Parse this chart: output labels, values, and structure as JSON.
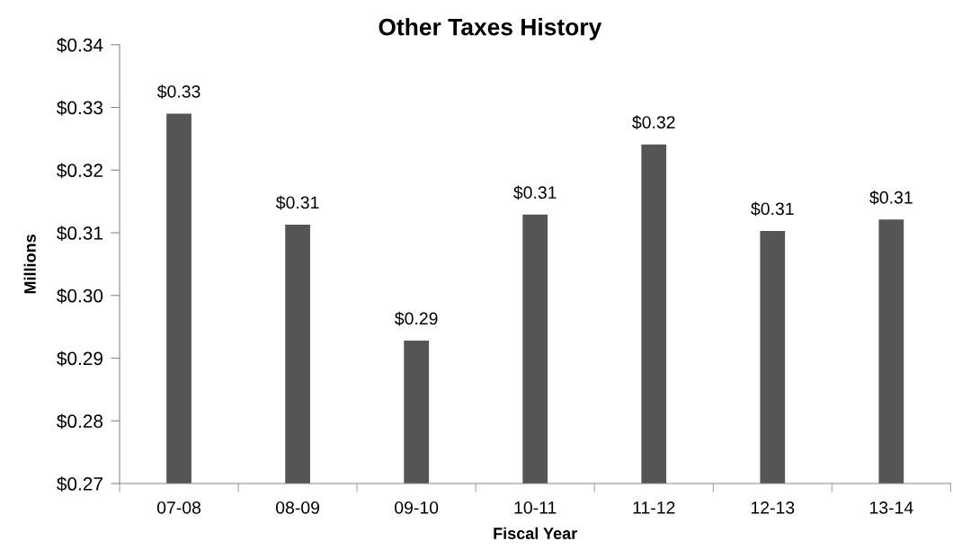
{
  "chart_data": {
    "type": "bar",
    "title": "Other Taxes History",
    "xlabel": "Fiscal Year",
    "ylabel": "Millions",
    "categories": [
      "07-08",
      "08-09",
      "09-10",
      "10-11",
      "11-12",
      "12-13",
      "13-14"
    ],
    "values": [
      0.329,
      0.3113,
      0.2928,
      0.3129,
      0.3241,
      0.3103,
      0.3121
    ],
    "value_labels": [
      "$0.33",
      "$0.31",
      "$0.29",
      "$0.31",
      "$0.32",
      "$0.31",
      "$0.31"
    ],
    "color": "#555555",
    "ylim": [
      0.27,
      0.34
    ],
    "yticks": [
      {
        "value": 0.27,
        "label": "$0.27"
      },
      {
        "value": 0.28,
        "label": "$0.28"
      },
      {
        "value": 0.29,
        "label": "$0.29"
      },
      {
        "value": 0.3,
        "label": "$0.30"
      },
      {
        "value": 0.31,
        "label": "$0.31"
      },
      {
        "value": 0.32,
        "label": "$0.32"
      },
      {
        "value": 0.33,
        "label": "$0.33"
      },
      {
        "value": 0.34,
        "label": "$0.34"
      }
    ]
  }
}
